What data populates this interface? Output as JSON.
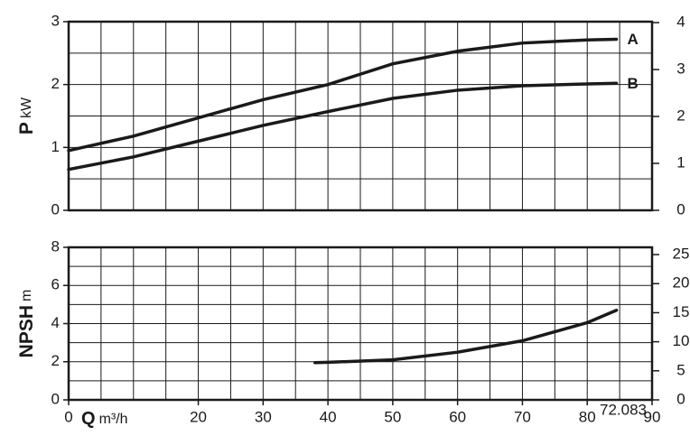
{
  "chart_data": [
    {
      "type": "line",
      "ylabel": "P",
      "ylabel_unit": "kW",
      "x": [
        0,
        10,
        20,
        30,
        40,
        50,
        60,
        70,
        80,
        84.5
      ],
      "series": [
        {
          "name": "A",
          "color": "#1a1a1a",
          "values": [
            0.95,
            1.18,
            1.47,
            1.76,
            2.0,
            2.33,
            2.53,
            2.66,
            2.71,
            2.72
          ]
        },
        {
          "name": "B",
          "color": "#1a1a1a",
          "values": [
            0.65,
            0.85,
            1.1,
            1.35,
            1.57,
            1.78,
            1.91,
            1.98,
            2.01,
            2.02
          ]
        }
      ],
      "xlim": [
        0,
        90
      ],
      "ylim": [
        0,
        3
      ],
      "yticks": [
        0,
        1,
        2,
        3
      ],
      "y2lim": [
        0,
        4.02
      ],
      "y2ticks": [
        0,
        1,
        2,
        3,
        4
      ],
      "xgrid": [
        5,
        10,
        15,
        20,
        25,
        30,
        35,
        40,
        45,
        50,
        55,
        60,
        65,
        70,
        75,
        80,
        85
      ],
      "ygrid": [
        0.5,
        1,
        1.5,
        2,
        2.5
      ],
      "grid": true
    },
    {
      "type": "line",
      "ylabel": "NPSH",
      "ylabel_unit": "m",
      "xlabel": "Q",
      "xlabel_unit": "m³/h",
      "x": [
        38,
        40,
        50,
        60,
        70,
        80,
        84.5
      ],
      "series": [
        {
          "color": "#1a1a1a",
          "values": [
            1.95,
            1.97,
            2.1,
            2.5,
            3.1,
            4.05,
            4.7
          ]
        }
      ],
      "xlim": [
        0,
        90
      ],
      "xticks": [
        0,
        20,
        30,
        40,
        50,
        60,
        70,
        80,
        90
      ],
      "ylim": [
        0,
        8
      ],
      "yticks": [
        0,
        2,
        4,
        6,
        8
      ],
      "y2lim": [
        0,
        26.25
      ],
      "y2ticks": [
        0,
        5,
        10,
        15,
        20,
        25
      ],
      "xgrid": [
        5,
        10,
        15,
        20,
        25,
        30,
        35,
        40,
        45,
        50,
        55,
        60,
        65,
        70,
        75,
        80,
        85
      ],
      "ygrid": [
        1,
        2,
        3,
        4,
        5,
        6,
        7
      ],
      "grid": true,
      "annotation": "72.083"
    }
  ]
}
